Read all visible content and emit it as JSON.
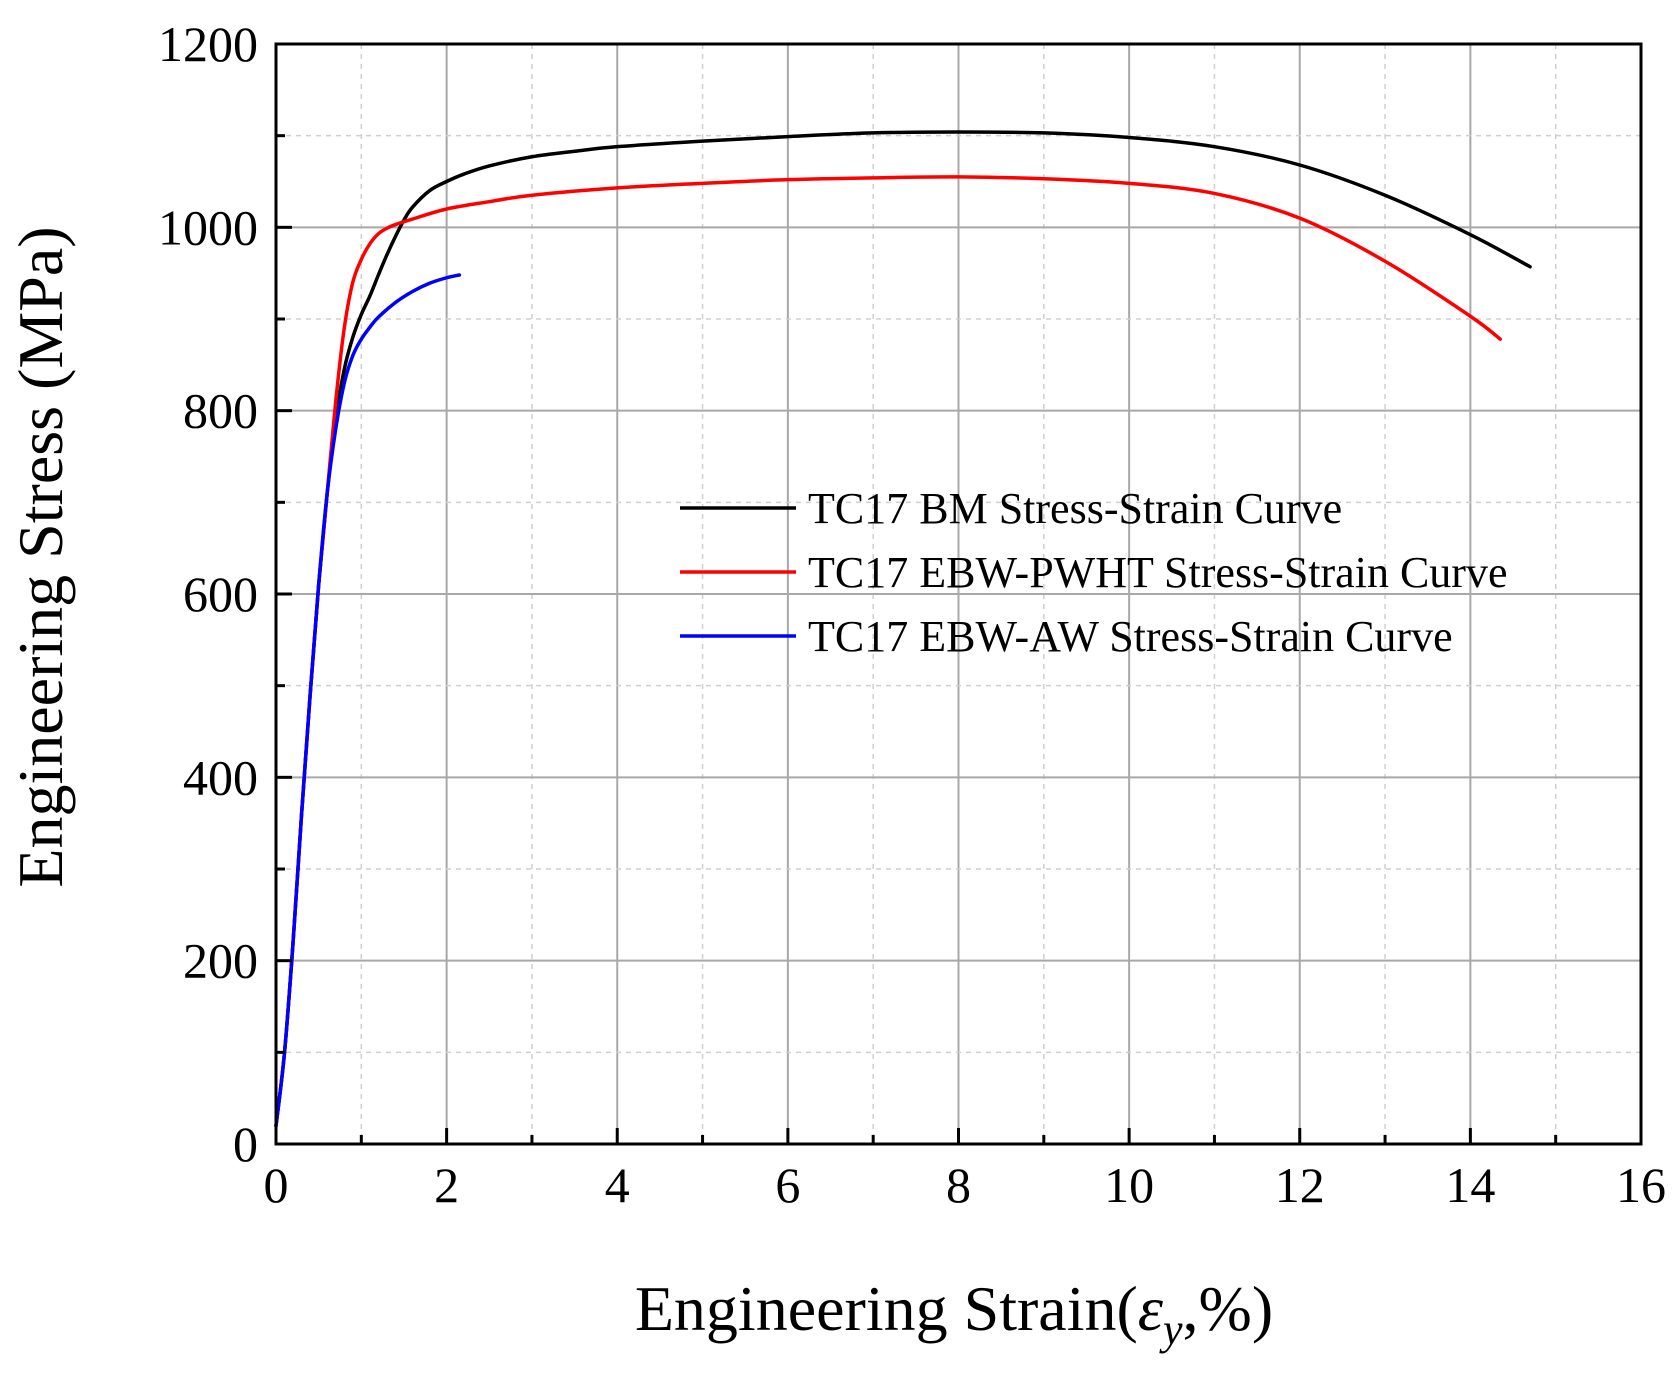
{
  "chart_data": {
    "type": "line",
    "title": "",
    "xlabel_main": "Engineering Strain(",
    "xlabel_symbol": "ε",
    "xlabel_subscript": "y",
    "xlabel_suffix": ",%)",
    "ylabel": "Engineering Stress (MPa)",
    "xlim": [
      0,
      16
    ],
    "ylim": [
      0,
      1200
    ],
    "xticks": [
      0,
      2,
      4,
      6,
      8,
      10,
      12,
      14,
      16
    ],
    "yticks": [
      0,
      200,
      400,
      600,
      800,
      1000,
      1200
    ],
    "x_tick_labels": [
      "0",
      "2",
      "4",
      "6",
      "8",
      "10",
      "12",
      "14",
      "16"
    ],
    "y_tick_labels": [
      "0",
      "200",
      "400",
      "600",
      "800",
      "1000",
      "1200"
    ],
    "grid": true,
    "legend_position": "center-right",
    "series": [
      {
        "name": "TC17 BM Stress-Strain Curve",
        "color": "#000000",
        "x": [
          0.0,
          0.1,
          0.2,
          0.3,
          0.4,
          0.5,
          0.6,
          0.7,
          0.8,
          0.9,
          1.0,
          1.1,
          1.2,
          1.3,
          1.4,
          1.5,
          1.6,
          1.8,
          2.0,
          2.2,
          2.5,
          3.0,
          3.5,
          4.0,
          5.0,
          6.0,
          7.0,
          8.0,
          9.0,
          10.0,
          11.0,
          12.0,
          13.0,
          14.0,
          14.7
        ],
        "y": [
          20,
          100,
          220,
          360,
          490,
          610,
          710,
          790,
          845,
          880,
          905,
          925,
          948,
          970,
          990,
          1008,
          1022,
          1040,
          1050,
          1058,
          1067,
          1077,
          1083,
          1088,
          1094,
          1099,
          1103,
          1104,
          1103,
          1098,
          1088,
          1068,
          1035,
          992,
          957
        ]
      },
      {
        "name": "TC17 EBW-PWHT Stress-Strain Curve",
        "color": "#ff0000",
        "x": [
          0.0,
          0.1,
          0.2,
          0.3,
          0.4,
          0.5,
          0.6,
          0.7,
          0.8,
          0.9,
          1.0,
          1.1,
          1.2,
          1.3,
          1.4,
          1.6,
          2.0,
          2.5,
          3.0,
          4.0,
          5.0,
          6.0,
          7.0,
          8.0,
          9.0,
          10.0,
          11.0,
          12.0,
          13.0,
          14.0,
          14.35
        ],
        "y": [
          20,
          100,
          220,
          360,
          490,
          610,
          710,
          810,
          890,
          940,
          965,
          982,
          993,
          999,
          1003,
          1009,
          1020,
          1028,
          1035,
          1043,
          1048,
          1052,
          1054,
          1055,
          1053,
          1048,
          1037,
          1010,
          963,
          903,
          878
        ]
      },
      {
        "name": "TC17 EBW-AW Stress-Strain Curve",
        "color": "#0000ff",
        "x": [
          0.0,
          0.1,
          0.2,
          0.3,
          0.4,
          0.5,
          0.6,
          0.7,
          0.8,
          0.9,
          1.0,
          1.1,
          1.2,
          1.4,
          1.6,
          1.8,
          2.0,
          2.15
        ],
        "y": [
          20,
          100,
          220,
          360,
          490,
          610,
          710,
          780,
          830,
          860,
          878,
          891,
          902,
          918,
          930,
          939,
          945,
          948
        ]
      }
    ]
  }
}
